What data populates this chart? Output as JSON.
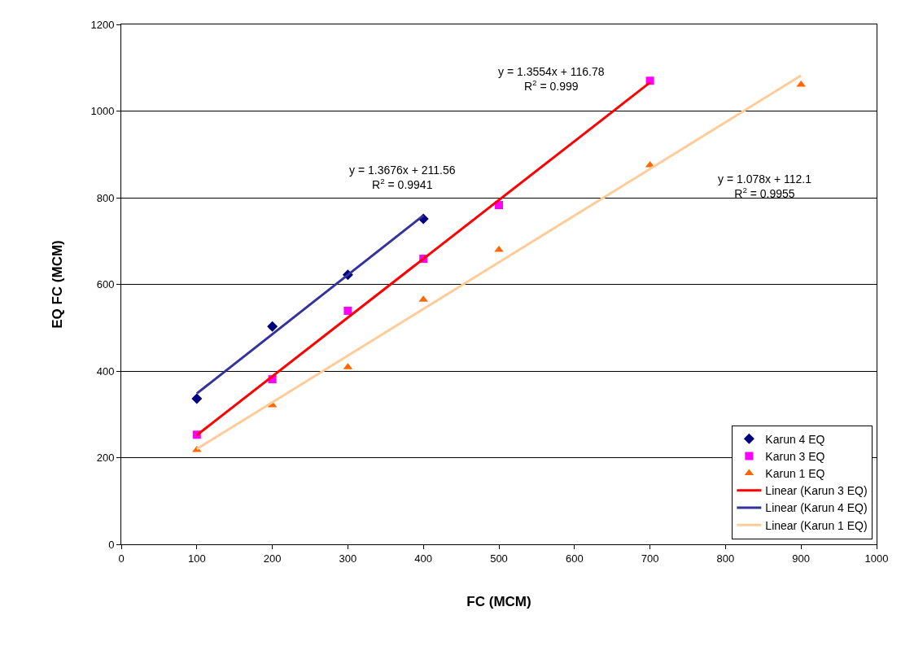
{
  "chart_data": {
    "type": "scatter",
    "xlabel": "FC (MCM)",
    "ylabel": "EQ FC (MCM)",
    "xlim": [
      0,
      1000
    ],
    "xticks": [
      0,
      100,
      200,
      300,
      400,
      500,
      600,
      700,
      800,
      900,
      1000
    ],
    "ylim": [
      0,
      1200
    ],
    "yticks": [
      0,
      200,
      400,
      600,
      800,
      1000,
      1200
    ],
    "grid": "y",
    "legend": "bottom right",
    "series": [
      {
        "name": "Karun 4 EQ",
        "marker": "diamond",
        "color": "#000080",
        "x": [
          100,
          200,
          300,
          400
        ],
        "values": [
          336,
          503,
          622,
          751
        ]
      },
      {
        "name": "Karun 3 EQ",
        "marker": "square",
        "color": "#ff00ff",
        "x": [
          100,
          200,
          300,
          400,
          500,
          700
        ],
        "values": [
          253,
          381,
          539,
          659,
          783,
          1070
        ]
      },
      {
        "name": "Karun 1 EQ",
        "marker": "triangle",
        "color": "#ff6600",
        "x": [
          100,
          200,
          300,
          400,
          500,
          700,
          900
        ],
        "values": [
          218,
          321,
          409,
          565,
          680,
          875,
          1061
        ]
      },
      {
        "name": "Linear (Karun 3 EQ)",
        "type": "line",
        "marker": "none",
        "line_style": "solid",
        "color": "#ff0000",
        "x": [
          100,
          700
        ],
        "values": [
          252,
          1066
        ]
      },
      {
        "name": "Linear (Karun 4 EQ)",
        "type": "line",
        "marker": "none",
        "line_style": "solid",
        "color": "#333399",
        "x": [
          100,
          400
        ],
        "values": [
          348,
          759
        ]
      },
      {
        "name": "Linear (Karun 1 EQ)",
        "type": "line",
        "marker": "none",
        "line_style": "solid",
        "color": "#ffcc99",
        "x": [
          100,
          900
        ],
        "values": [
          220,
          1082
        ]
      }
    ],
    "annotations": [
      "y = 1.3676x + 211.56\nR$^{2}$ = 0.9941",
      "y = 1.3554x + 116.78\nR$^{2}$ = 0.999",
      "y = 1.078x + 112.1\nR$^{2}$ = 0.9955"
    ]
  }
}
